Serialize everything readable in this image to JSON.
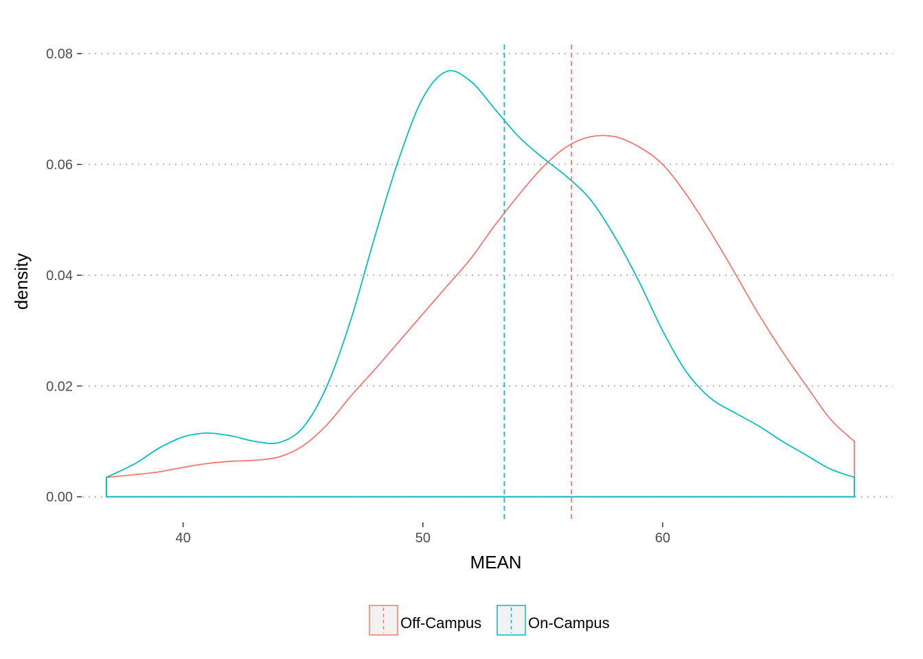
{
  "chart_data": {
    "type": "line",
    "subtype": "density",
    "title": "",
    "xlabel": "MEAN",
    "ylabel": "density",
    "xlim": [
      35.8,
      69.6
    ],
    "ylim": [
      -0.0045,
      0.082
    ],
    "x_ticks": [
      40,
      50,
      60
    ],
    "x_tick_labels": [
      "40",
      "50",
      "60"
    ],
    "y_ticks": [
      0.0,
      0.02,
      0.04,
      0.06,
      0.08
    ],
    "y_tick_labels": [
      "0.00",
      "0.02",
      "0.04",
      "0.06",
      "0.08"
    ],
    "grid": "horizontal-dotted",
    "legend_position": "bottom",
    "series": [
      {
        "name": "Off-Campus",
        "color": "#F8766D",
        "mean": 56.2,
        "x": [
          36.8,
          38,
          39,
          40,
          41,
          42,
          43,
          44,
          45,
          46,
          47,
          48,
          49,
          50,
          51,
          52,
          53,
          54,
          55,
          56,
          57,
          58,
          59,
          60,
          61,
          62,
          63,
          64,
          65,
          66,
          67,
          68.0
        ],
        "y": [
          0.0035,
          0.004,
          0.0045,
          0.0053,
          0.006,
          0.0064,
          0.0066,
          0.0072,
          0.0092,
          0.013,
          0.0182,
          0.023,
          0.028,
          0.033,
          0.038,
          0.043,
          0.049,
          0.0545,
          0.0595,
          0.0632,
          0.065,
          0.065,
          0.0632,
          0.06,
          0.0545,
          0.0478,
          0.0405,
          0.033,
          0.0262,
          0.02,
          0.014,
          0.01
        ]
      },
      {
        "name": "On-Campus",
        "color": "#00BFC4",
        "mean": 53.4,
        "x": [
          36.8,
          38,
          39,
          40,
          41,
          42,
          43,
          44,
          45,
          46,
          47,
          48,
          49,
          50,
          51,
          52,
          53,
          54,
          55,
          56,
          57,
          58,
          59,
          60,
          61,
          62,
          63,
          64,
          65,
          66,
          67,
          68.0
        ],
        "y": [
          0.0035,
          0.006,
          0.0088,
          0.0108,
          0.0115,
          0.011,
          0.01,
          0.0098,
          0.0125,
          0.02,
          0.032,
          0.047,
          0.061,
          0.072,
          0.0768,
          0.075,
          0.07,
          0.065,
          0.0612,
          0.0578,
          0.0536,
          0.047,
          0.039,
          0.03,
          0.0225,
          0.0178,
          0.0152,
          0.0128,
          0.01,
          0.0075,
          0.005,
          0.0035
        ]
      }
    ]
  }
}
